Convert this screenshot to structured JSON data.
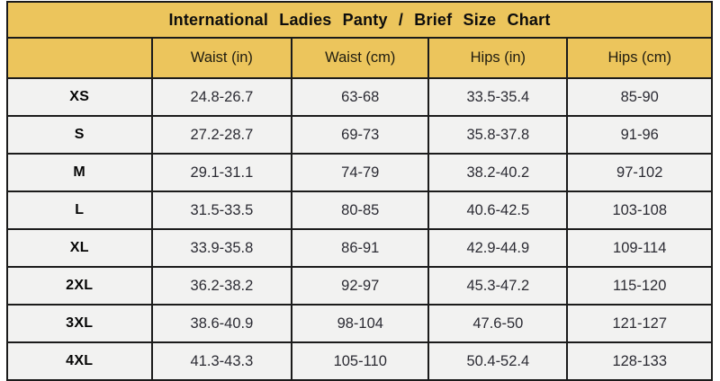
{
  "colors": {
    "header_gold": "#ecc55c",
    "row_background": "#f2f2f1",
    "border_black": "#1b1b1b",
    "title_text": "#0d0d0d",
    "value_text": "#2b2b33"
  },
  "chart_data": {
    "type": "table",
    "title": "International Ladies Panty / Brief Size Chart",
    "columns": [
      "",
      "Waist (in)",
      "Waist (cm)",
      "Hips (in)",
      "Hips (cm)"
    ],
    "rows": [
      {
        "size": "XS",
        "values": [
          "24.8-26.7",
          "63-68",
          "33.5-35.4",
          "85-90"
        ]
      },
      {
        "size": "S",
        "values": [
          "27.2-28.7",
          "69-73",
          "35.8-37.8",
          "91-96"
        ]
      },
      {
        "size": "M",
        "values": [
          "29.1-31.1",
          "74-79",
          "38.2-40.2",
          "97-102"
        ]
      },
      {
        "size": "L",
        "values": [
          "31.5-33.5",
          "80-85",
          "40.6-42.5",
          "103-108"
        ]
      },
      {
        "size": "XL",
        "values": [
          "33.9-35.8",
          "86-91",
          "42.9-44.9",
          "109-114"
        ]
      },
      {
        "size": "2XL",
        "values": [
          "36.2-38.2",
          "92-97",
          "45.3-47.2",
          "115-120"
        ]
      },
      {
        "size": "3XL",
        "values": [
          "38.6-40.9",
          "98-104",
          "47.6-50",
          "121-127"
        ]
      },
      {
        "size": "4XL",
        "values": [
          "41.3-43.3",
          "105-110",
          "50.4-52.4",
          "128-133"
        ]
      }
    ]
  }
}
